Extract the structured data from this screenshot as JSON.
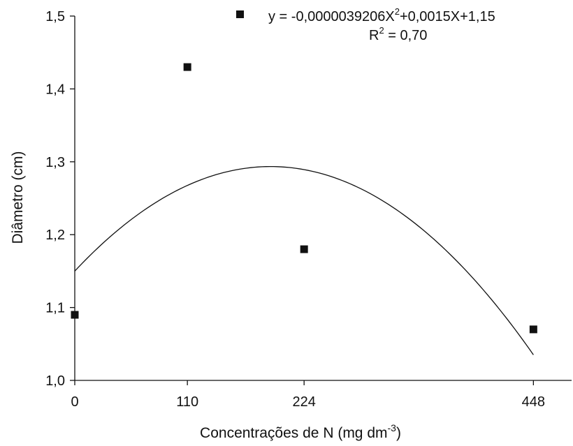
{
  "chart_data": {
    "type": "scatter",
    "xlabel": "Concentrações de N (mg dm",
    "xlabel_superscript": "-3",
    "xlabel_suffix": ")",
    "ylabel": "Diâmetro (cm)",
    "xlim": [
      0,
      448
    ],
    "ylim": [
      1.0,
      1.5
    ],
    "x_ticks": [
      0,
      110,
      224,
      448
    ],
    "x_tick_labels": [
      "0",
      "110",
      "224",
      "448"
    ],
    "y_ticks": [
      1.0,
      1.1,
      1.2,
      1.3,
      1.4,
      1.5
    ],
    "y_tick_labels": [
      "1,0",
      "1,1",
      "1,2",
      "1,3",
      "1,4",
      "1,5"
    ],
    "grid": false,
    "legend_position": "top",
    "series": [
      {
        "marker": "square",
        "x": [
          0,
          110,
          224,
          448
        ],
        "y": [
          1.09,
          1.43,
          1.18,
          1.07
        ]
      }
    ],
    "trendline": {
      "coefficients": {
        "a": -3.9206e-06,
        "b": 0.0015,
        "c": 1.15
      },
      "x_range": [
        0,
        448
      ]
    },
    "equation": {
      "prefix": "y = -0,0000039206X",
      "sup": "2",
      "suffix": "+0,0015X+1,15"
    },
    "r_squared": {
      "prefix": "R",
      "sup": "2",
      "suffix": " = 0,70"
    },
    "colors": {
      "marker": "#111111",
      "line": "#111111",
      "axis": "#111111"
    }
  }
}
